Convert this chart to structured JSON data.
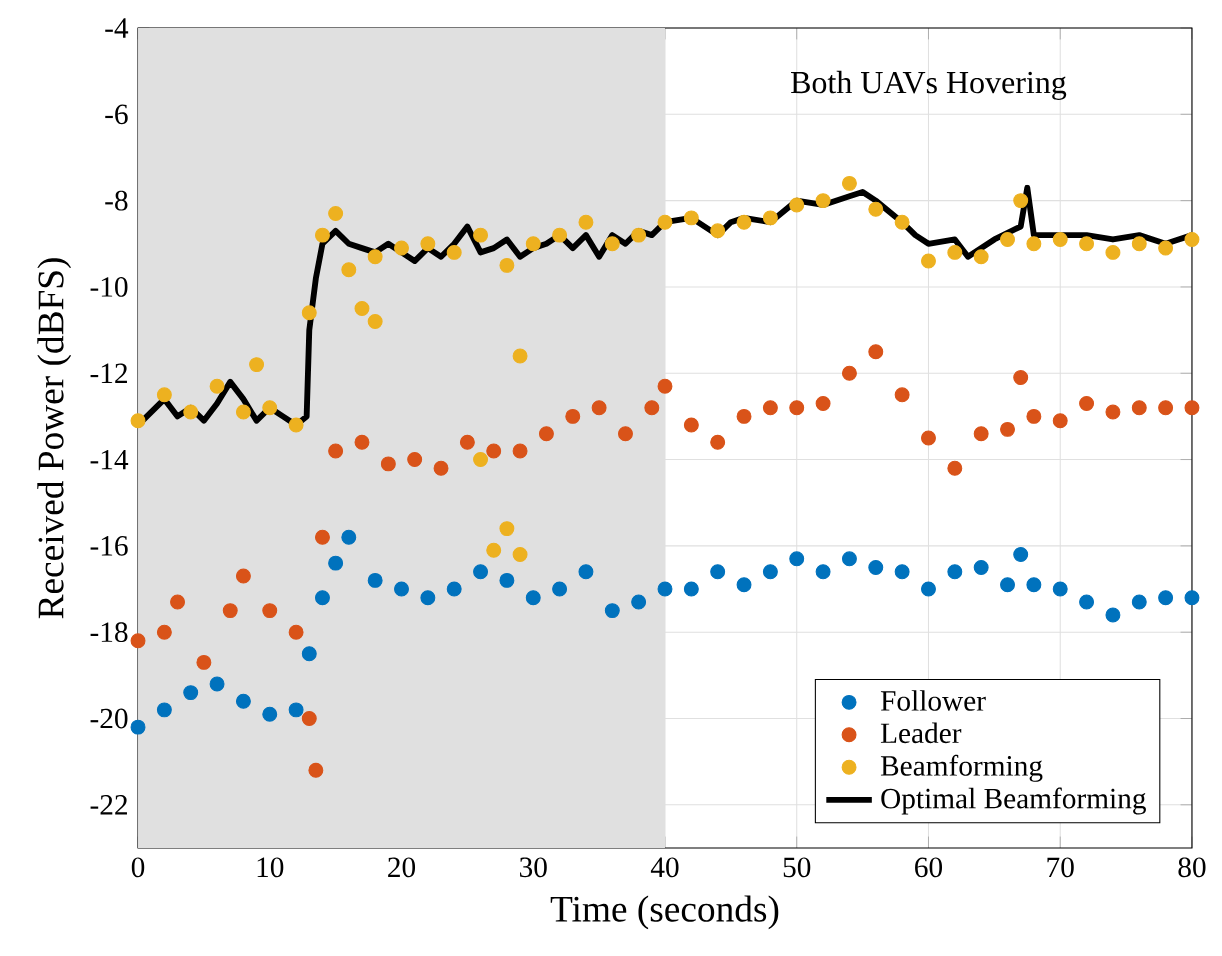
{
  "chart_data": {
    "type": "scatter",
    "xlabel": "Time (seconds)",
    "ylabel": "Received Power (dBFS)",
    "xlim": [
      0,
      80
    ],
    "ylim": [
      -23,
      -4
    ],
    "xticks": [
      0,
      10,
      20,
      30,
      40,
      50,
      60,
      70,
      80
    ],
    "yticks": [
      -22,
      -20,
      -18,
      -16,
      -14,
      -12,
      -10,
      -8,
      -6,
      -4
    ],
    "grid": true,
    "legend": "bottom right",
    "bands": [
      {
        "axis": "x",
        "from": 0,
        "to": 40,
        "color": "#e0e0e0"
      }
    ],
    "annotations": [
      "Both UAVs Hovering"
    ],
    "series": [
      {
        "name": "Follower",
        "color": "#0072bd",
        "marker": "circle",
        "x": [
          0,
          2,
          4,
          6,
          8,
          10,
          12,
          13,
          14,
          15,
          16,
          18,
          20,
          22,
          24,
          26,
          28,
          30,
          32,
          34,
          36,
          38,
          40,
          42,
          44,
          46,
          48,
          50,
          52,
          54,
          56,
          58,
          60,
          62,
          64,
          66,
          67,
          68,
          70,
          72,
          74,
          76,
          78,
          80
        ],
        "values": [
          -20.2,
          -19.8,
          -19.4,
          -19.2,
          -19.6,
          -19.9,
          -19.8,
          -18.5,
          -17.2,
          -16.4,
          -15.8,
          -16.8,
          -17.0,
          -17.2,
          -17.0,
          -16.6,
          -16.8,
          -17.2,
          -17.0,
          -16.6,
          -17.5,
          -17.3,
          -17.0,
          -17.0,
          -16.6,
          -16.9,
          -16.6,
          -16.3,
          -16.6,
          -16.3,
          -16.5,
          -16.6,
          -17.0,
          -16.6,
          -16.5,
          -16.9,
          -16.2,
          -16.9,
          -17.0,
          -17.3,
          -17.6,
          -17.3,
          -17.2,
          -17.2
        ]
      },
      {
        "name": "Leader",
        "color": "#d95319",
        "marker": "circle",
        "x": [
          0,
          2,
          3,
          5,
          7,
          8,
          10,
          12,
          13,
          13.5,
          14,
          15,
          17,
          19,
          21,
          23,
          25,
          27,
          29,
          31,
          33,
          35,
          37,
          39,
          40,
          42,
          44,
          46,
          48,
          50,
          52,
          54,
          56,
          58,
          60,
          62,
          64,
          66,
          67,
          68,
          70,
          72,
          74,
          76,
          78,
          80
        ],
        "values": [
          -18.2,
          -18.0,
          -17.3,
          -18.7,
          -17.5,
          -16.7,
          -17.5,
          -18.0,
          -20.0,
          -21.2,
          -15.8,
          -13.8,
          -13.6,
          -14.1,
          -14.0,
          -14.2,
          -13.6,
          -13.8,
          -13.8,
          -13.4,
          -13.0,
          -12.8,
          -13.4,
          -12.8,
          -12.3,
          -13.2,
          -13.6,
          -13.0,
          -12.8,
          -12.8,
          -12.7,
          -12.0,
          -11.5,
          -12.5,
          -13.5,
          -14.2,
          -13.4,
          -13.3,
          -12.1,
          -13.0,
          -13.1,
          -12.7,
          -12.9,
          -12.8,
          -12.8,
          -12.8
        ]
      },
      {
        "name": "Beamforming",
        "color": "#edb120",
        "marker": "circle",
        "x": [
          0,
          2,
          4,
          6,
          8,
          9,
          10,
          12,
          13,
          14,
          15,
          16,
          17,
          18,
          18,
          20,
          22,
          24,
          26,
          26,
          27,
          28,
          28,
          29,
          29,
          30,
          32,
          34,
          36,
          38,
          40,
          42,
          44,
          46,
          48,
          50,
          52,
          54,
          56,
          58,
          60,
          62,
          64,
          66,
          67,
          68,
          70,
          72,
          74,
          76,
          78,
          80
        ],
        "values": [
          -13.1,
          -12.5,
          -12.9,
          -12.3,
          -12.9,
          -11.8,
          -12.8,
          -13.2,
          -10.6,
          -8.8,
          -8.3,
          -9.6,
          -10.5,
          -9.3,
          -10.8,
          -9.1,
          -9.0,
          -9.2,
          -8.8,
          -14.0,
          -16.1,
          -9.5,
          -15.6,
          -11.6,
          -16.2,
          -9.0,
          -8.8,
          -8.5,
          -9.0,
          -8.8,
          -8.5,
          -8.4,
          -8.7,
          -8.5,
          -8.4,
          -8.1,
          -8.0,
          -7.6,
          -8.2,
          -8.5,
          -9.4,
          -9.2,
          -9.3,
          -8.9,
          -8.0,
          -9.0,
          -8.9,
          -9.0,
          -9.2,
          -9.0,
          -9.1,
          -8.9
        ]
      },
      {
        "name": "Optimal Beamforming",
        "type": "line",
        "marker": "none",
        "color": "#000000",
        "x": [
          0,
          1,
          2,
          3,
          4,
          5,
          6,
          7,
          8,
          9,
          10,
          11,
          12,
          12.8,
          13,
          13.5,
          14,
          15,
          16,
          17,
          18,
          19,
          20,
          21,
          22,
          23,
          24,
          25,
          26,
          27,
          28,
          29,
          30,
          31,
          32,
          33,
          34,
          35,
          36,
          37,
          38,
          39,
          40,
          42,
          44,
          45,
          46,
          48,
          50,
          52,
          54,
          55,
          56,
          58,
          59,
          60,
          62,
          63,
          65,
          67,
          67.5,
          68,
          70,
          72,
          74,
          76,
          78,
          80
        ],
        "values": [
          -13.2,
          -12.9,
          -12.6,
          -13.0,
          -12.8,
          -13.1,
          -12.7,
          -12.2,
          -12.6,
          -13.1,
          -12.8,
          -13.0,
          -13.2,
          -13.0,
          -11.0,
          -9.8,
          -9.0,
          -8.7,
          -9.0,
          -9.1,
          -9.2,
          -9.0,
          -9.2,
          -9.4,
          -9.1,
          -9.3,
          -9.0,
          -8.6,
          -9.2,
          -9.1,
          -8.9,
          -9.3,
          -9.1,
          -9.0,
          -8.8,
          -9.1,
          -8.8,
          -9.3,
          -8.8,
          -9.0,
          -8.7,
          -8.8,
          -8.5,
          -8.4,
          -8.8,
          -8.5,
          -8.4,
          -8.5,
          -8.0,
          -8.1,
          -7.9,
          -7.8,
          -8.0,
          -8.5,
          -8.8,
          -9.0,
          -8.9,
          -9.3,
          -8.9,
          -8.6,
          -7.7,
          -8.8,
          -8.8,
          -8.8,
          -8.9,
          -8.8,
          -9.0,
          -8.8
        ]
      }
    ]
  }
}
